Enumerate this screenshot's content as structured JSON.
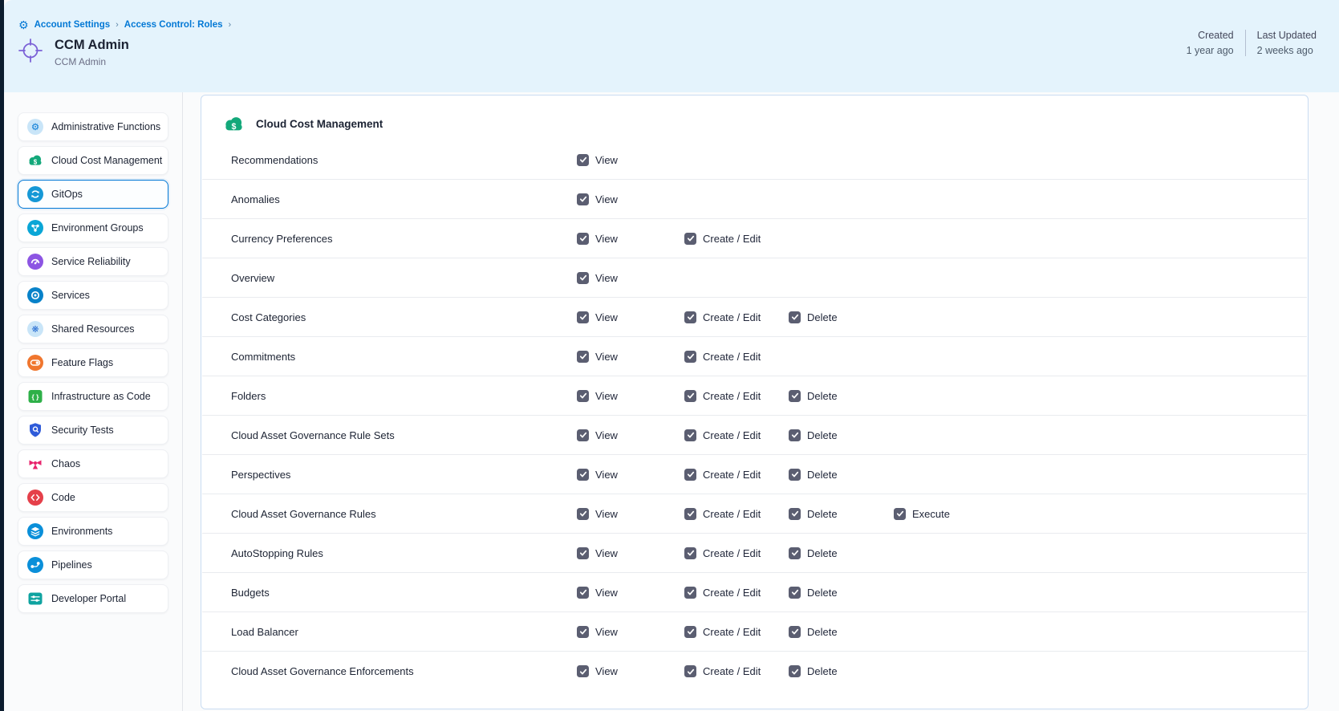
{
  "breadcrumb": {
    "icon": "gear-icon",
    "items": [
      {
        "label": "Account Settings"
      },
      {
        "label": "Access Control: Roles"
      }
    ],
    "separator": "›"
  },
  "header": {
    "icon": "crosshair-icon",
    "title": "CCM Admin",
    "subtitle": "CCM Admin",
    "meta": {
      "created_label": "Created",
      "created_value": "1 year ago",
      "updated_label": "Last Updated",
      "updated_value": "2 weeks ago"
    }
  },
  "sidebar": {
    "items": [
      {
        "label": "Administrative Functions",
        "icon": "gear-icon",
        "color": "#0278d5",
        "style": "soft",
        "selected": false
      },
      {
        "label": "Cloud Cost Management",
        "icon": "cloud-dollar-icon",
        "color": "#13a87a",
        "style": "cloud",
        "selected": false
      },
      {
        "label": "GitOps",
        "icon": "gitops-icon",
        "color": "#1598d6",
        "style": "circle",
        "selected": true
      },
      {
        "label": "Environment Groups",
        "icon": "environment-groups-icon",
        "color": "#0aa6d6",
        "style": "circle",
        "selected": false
      },
      {
        "label": "Service Reliability",
        "icon": "service-reliability-icon",
        "color": "#8d55e3",
        "style": "circle",
        "selected": false
      },
      {
        "label": "Services",
        "icon": "services-icon",
        "color": "#0882c9",
        "style": "circle",
        "selected": false
      },
      {
        "label": "Shared Resources",
        "icon": "shared-resources-icon",
        "color": "#2a6fd3",
        "style": "soft",
        "selected": false
      },
      {
        "label": "Feature Flags",
        "icon": "feature-flags-icon",
        "color": "#f0762e",
        "style": "circle",
        "selected": false
      },
      {
        "label": "Infrastructure as Code",
        "icon": "infrastructure-as-code-icon",
        "color": "#2eb048",
        "style": "square",
        "selected": false
      },
      {
        "label": "Security Tests",
        "icon": "security-tests-icon",
        "color": "#2f5bd9",
        "style": "shield",
        "selected": false
      },
      {
        "label": "Chaos",
        "icon": "chaos-icon",
        "color": "#e8256d",
        "style": "bare",
        "selected": false
      },
      {
        "label": "Code",
        "icon": "code-icon",
        "color": "#e5404a",
        "style": "circle",
        "selected": false
      },
      {
        "label": "Environments",
        "icon": "environments-icon",
        "color": "#0a8fd9",
        "style": "circle",
        "selected": false
      },
      {
        "label": "Pipelines",
        "icon": "pipelines-icon",
        "color": "#0a8fd9",
        "style": "circle",
        "selected": false
      },
      {
        "label": "Developer Portal",
        "icon": "developer-portal-icon",
        "color": "#0fa3a0",
        "style": "square",
        "selected": false
      }
    ]
  },
  "main": {
    "module_icon": "cloud-dollar-icon",
    "module_title": "Cloud Cost Management",
    "permission_columns": {
      "view": "View",
      "create_edit": "Create / Edit",
      "delete": "Delete",
      "execute": "Execute"
    },
    "rows": [
      {
        "resource": "Recommendations",
        "view": true,
        "create_edit": false,
        "delete": false,
        "execute": false
      },
      {
        "resource": "Anomalies",
        "view": true,
        "create_edit": false,
        "delete": false,
        "execute": false
      },
      {
        "resource": "Currency Preferences",
        "view": true,
        "create_edit": true,
        "delete": false,
        "execute": false
      },
      {
        "resource": "Overview",
        "view": true,
        "create_edit": false,
        "delete": false,
        "execute": false
      },
      {
        "resource": "Cost Categories",
        "view": true,
        "create_edit": true,
        "delete": true,
        "execute": false
      },
      {
        "resource": "Commitments",
        "view": true,
        "create_edit": true,
        "delete": false,
        "execute": false
      },
      {
        "resource": "Folders",
        "view": true,
        "create_edit": true,
        "delete": true,
        "execute": false
      },
      {
        "resource": "Cloud Asset Governance Rule Sets",
        "view": true,
        "create_edit": true,
        "delete": true,
        "execute": false
      },
      {
        "resource": "Perspectives",
        "view": true,
        "create_edit": true,
        "delete": true,
        "execute": false
      },
      {
        "resource": "Cloud Asset Governance Rules",
        "view": true,
        "create_edit": true,
        "delete": true,
        "execute": true
      },
      {
        "resource": "AutoStopping Rules",
        "view": true,
        "create_edit": true,
        "delete": true,
        "execute": false
      },
      {
        "resource": "Budgets",
        "view": true,
        "create_edit": true,
        "delete": true,
        "execute": false
      },
      {
        "resource": "Load Balancer",
        "view": true,
        "create_edit": true,
        "delete": true,
        "execute": false
      },
      {
        "resource": "Cloud Asset Governance Enforcements",
        "view": true,
        "create_edit": true,
        "delete": true,
        "execute": false
      }
    ]
  },
  "colors": {
    "accent_blue": "#0278d5",
    "header_bg": "#e4f3fc",
    "checkbox_fill": "#5b5e71",
    "panel_border": "#c9dcf2",
    "crosshair_purple": "#7b61d6",
    "ccm_green": "#13a87a"
  }
}
